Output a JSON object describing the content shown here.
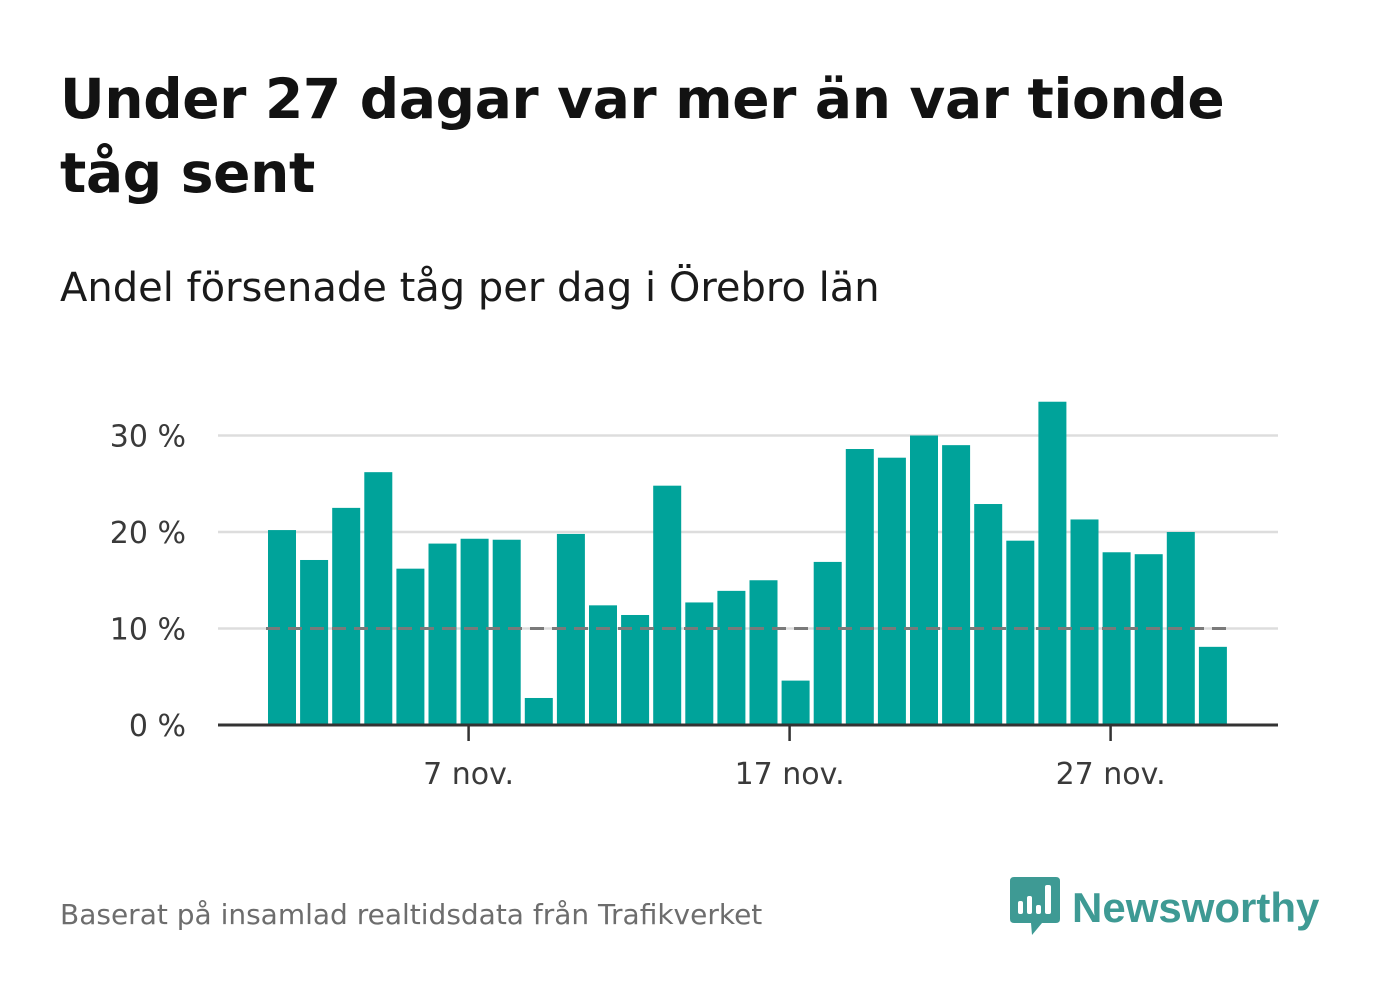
{
  "title": "Under 27 dagar var mer än var tionde tåg sent",
  "subtitle": "Andel försenade tåg per dag i Örebro län",
  "source": "Baserat på insamlad realtidsdata från Trafikverket",
  "brand": {
    "name": "Newsworthy",
    "icon": "newsworthy-logo-icon",
    "color": "#3e9a94"
  },
  "colors": {
    "bar": "#00a39a",
    "reference_line": "#7a7a7a",
    "grid": "#dddddd",
    "axis": "#333333"
  },
  "chart_data": {
    "type": "bar",
    "x_unit": "day of month (November)",
    "x": [
      1,
      2,
      3,
      4,
      5,
      6,
      7,
      8,
      9,
      10,
      11,
      12,
      13,
      14,
      15,
      16,
      17,
      18,
      19,
      20,
      21,
      22,
      23,
      24,
      25,
      26,
      27,
      28,
      29,
      30
    ],
    "values": [
      20.2,
      17.1,
      22.5,
      26.2,
      16.2,
      18.8,
      19.3,
      19.2,
      2.8,
      19.8,
      12.4,
      11.4,
      24.8,
      12.7,
      13.9,
      15.0,
      4.6,
      16.9,
      28.6,
      27.7,
      30.0,
      29.0,
      22.9,
      19.1,
      33.5,
      21.3,
      17.9,
      17.7,
      20.0,
      8.1
    ],
    "reference_line": 10,
    "ylim": [
      0,
      35
    ],
    "yticks": [
      0,
      10,
      20,
      30
    ],
    "ytick_labels": [
      "0 %",
      "10 %",
      "20 %",
      "30 %"
    ],
    "xticks": [
      7,
      17,
      27
    ],
    "xtick_labels": [
      "7 nov.",
      "17 nov.",
      "27 nov."
    ],
    "grid": true
  }
}
